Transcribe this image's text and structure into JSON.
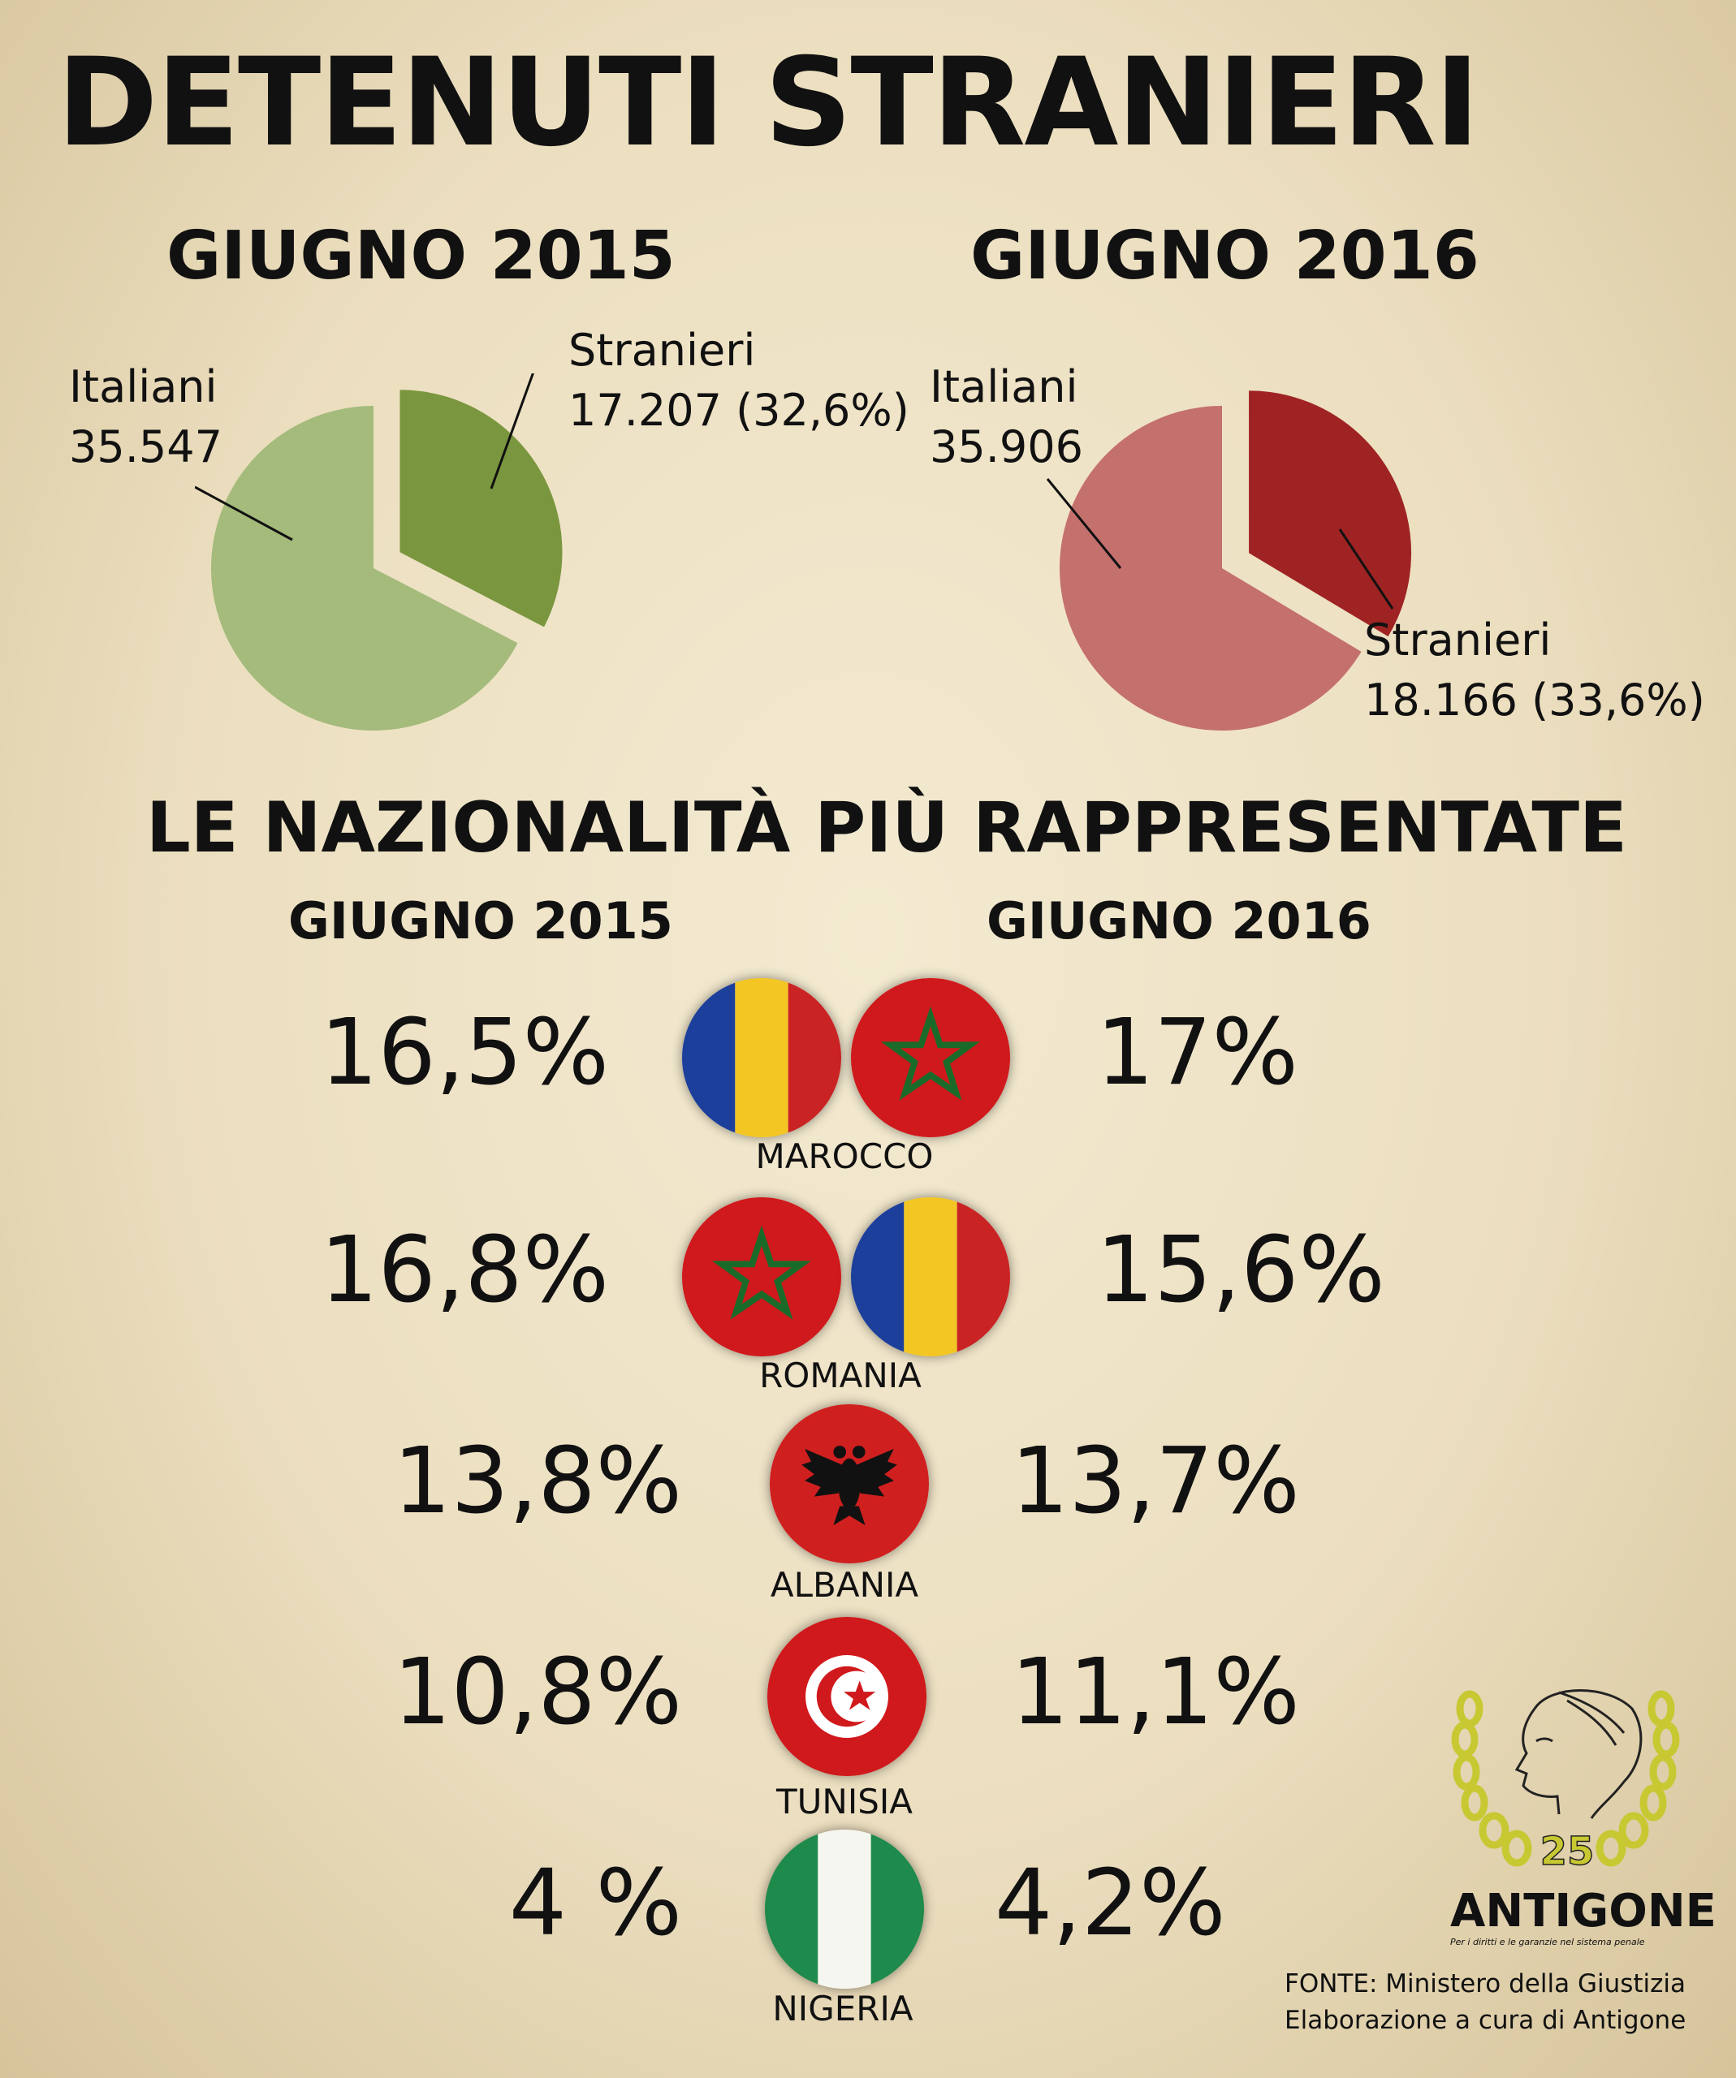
{
  "title": "DETENUTI STRANIERI",
  "pies": [
    {
      "heading": "GIUGNO 2015",
      "italiani_label": "Italiani",
      "italiani_value": "35.547",
      "stranieri_label": "Stranieri",
      "stranieri_value": "17.207 (32,6%)",
      "colors": {
        "italiani": "#a4bb7c",
        "stranieri": "#7a973f"
      }
    },
    {
      "heading": "GIUGNO 2016",
      "italiani_label": "Italiani",
      "italiani_value": "35.906",
      "stranieri_label": "Stranieri",
      "stranieri_value": "18.166 (33,6%)",
      "colors": {
        "italiani": "#c4706d",
        "stranieri": "#9f2323"
      }
    }
  ],
  "chart_data": [
    {
      "type": "pie",
      "title": "GIUGNO 2015",
      "categories": [
        "Italiani",
        "Stranieri"
      ],
      "values": [
        35547,
        17207
      ],
      "percent": [
        67.4,
        32.6
      ]
    },
    {
      "type": "pie",
      "title": "GIUGNO 2016",
      "categories": [
        "Italiani",
        "Stranieri"
      ],
      "values": [
        35906,
        18166
      ],
      "percent": [
        66.4,
        33.6
      ]
    },
    {
      "type": "table",
      "title": "LE NAZIONALITÀ PIÙ RAPPRESENTATE",
      "columns": [
        "GIUGNO 2015",
        "GIUGNO 2016"
      ],
      "rows": [
        {
          "country": "MAROCCO",
          "v2015": "16,5%",
          "v2016": "17%"
        },
        {
          "country": "ROMANIA",
          "v2015": "16,8%",
          "v2016": "15,6%"
        },
        {
          "country": "ALBANIA",
          "v2015": "13,8%",
          "v2016": "13,7%"
        },
        {
          "country": "TUNISIA",
          "v2015": "10,8%",
          "v2016": "11,1%"
        },
        {
          "country": "NIGERIA",
          "v2015": "4 %",
          "v2016": "4,2%"
        }
      ]
    }
  ],
  "nationalities": {
    "title": "LE NAZIONALITÀ PIÙ RAPPRESENTATE",
    "col_2015": "GIUGNO 2015",
    "col_2016": "GIUGNO 2016",
    "rows": [
      {
        "country": "MAROCCO",
        "v2015": "16,5%",
        "v2016": "17%",
        "flags": [
          "romania-flag",
          "morocco-flag"
        ]
      },
      {
        "country": "ROMANIA",
        "v2015": "16,8%",
        "v2016": "15,6%",
        "flags": [
          "morocco-flag",
          "romania-flag"
        ]
      },
      {
        "country": "ALBANIA",
        "v2015": "13,8%",
        "v2016": "13,7%",
        "flags": [
          "albania-flag"
        ]
      },
      {
        "country": "TUNISIA",
        "v2015": "10,8%",
        "v2016": "11,1%",
        "flags": [
          "tunisia-flag"
        ]
      },
      {
        "country": "NIGERIA",
        "v2015": "4 %",
        "v2016": "4,2%",
        "flags": [
          "nigeria-flag"
        ]
      }
    ]
  },
  "logo": {
    "number": "25",
    "name": "ANTIGONE",
    "tagline": "Per i diritti e le garanzie nel sistema penale"
  },
  "source": {
    "line1": "FONTE: Ministero della Giustizia",
    "line2": "Elaborazione a cura di Antigone"
  }
}
